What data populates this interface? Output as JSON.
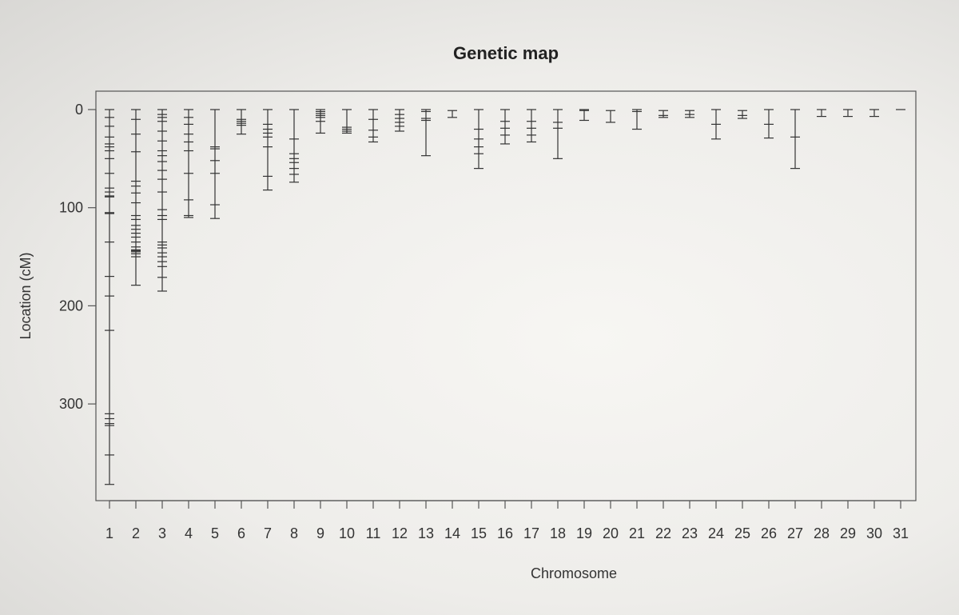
{
  "chart_data": {
    "type": "genetic-map",
    "title": "Genetic map",
    "xlabel": "Chromosome",
    "ylabel": "Location (cM)",
    "ylim": [
      0,
      395
    ],
    "y_reversed": true,
    "y_ticks": [
      0,
      100,
      200,
      300
    ],
    "categories": [
      "1",
      "2",
      "3",
      "4",
      "5",
      "6",
      "7",
      "8",
      "9",
      "10",
      "11",
      "12",
      "13",
      "14",
      "15",
      "16",
      "17",
      "18",
      "19",
      "20",
      "21",
      "22",
      "23",
      "24",
      "25",
      "26",
      "27",
      "28",
      "29",
      "30",
      "31"
    ],
    "chromosomes": [
      {
        "name": "1",
        "markers": [
          0,
          8,
          17,
          28,
          35,
          38,
          42,
          50,
          65,
          80,
          84,
          88,
          89,
          105,
          106,
          135,
          170,
          190,
          225,
          310,
          315,
          320,
          322,
          352,
          382
        ]
      },
      {
        "name": "2",
        "markers": [
          0,
          10,
          25,
          43,
          73,
          78,
          85,
          95,
          108,
          112,
          118,
          122,
          126,
          130,
          135,
          140,
          143,
          144,
          145,
          147,
          150,
          179
        ]
      },
      {
        "name": "3",
        "markers": [
          0,
          5,
          8,
          12,
          22,
          32,
          42,
          47,
          53,
          62,
          71,
          84,
          102,
          108,
          112,
          135,
          138,
          141,
          146,
          150,
          155,
          160,
          171,
          185
        ]
      },
      {
        "name": "4",
        "markers": [
          0,
          8,
          15,
          25,
          33,
          42,
          65,
          92,
          108,
          110
        ]
      },
      {
        "name": "5",
        "markers": [
          0,
          38,
          40,
          52,
          65,
          97,
          111
        ]
      },
      {
        "name": "6",
        "markers": [
          0,
          10,
          12,
          14,
          16,
          25
        ]
      },
      {
        "name": "7",
        "markers": [
          0,
          15,
          20,
          24,
          28,
          38,
          68,
          82
        ]
      },
      {
        "name": "8",
        "markers": [
          0,
          30,
          45,
          50,
          54,
          60,
          66,
          74
        ]
      },
      {
        "name": "9",
        "markers": [
          0,
          2,
          4,
          6,
          8,
          12,
          24
        ]
      },
      {
        "name": "10",
        "markers": [
          0,
          18,
          20,
          22,
          24
        ]
      },
      {
        "name": "11",
        "markers": [
          0,
          10,
          21,
          28,
          33
        ]
      },
      {
        "name": "12",
        "markers": [
          0,
          5,
          9,
          13,
          17,
          22
        ]
      },
      {
        "name": "13",
        "markers": [
          0,
          2,
          9,
          11,
          47
        ]
      },
      {
        "name": "14",
        "markers": [
          1,
          8
        ]
      },
      {
        "name": "15",
        "markers": [
          0,
          20,
          30,
          38,
          45,
          60
        ]
      },
      {
        "name": "16",
        "markers": [
          0,
          12,
          19,
          26,
          35
        ]
      },
      {
        "name": "17",
        "markers": [
          0,
          12,
          19,
          26,
          33
        ]
      },
      {
        "name": "18",
        "markers": [
          0,
          13,
          19,
          50
        ]
      },
      {
        "name": "19",
        "markers": [
          0,
          1,
          11
        ]
      },
      {
        "name": "20",
        "markers": [
          1,
          13
        ]
      },
      {
        "name": "21",
        "markers": [
          0,
          2,
          20
        ]
      },
      {
        "name": "22",
        "markers": [
          1,
          6,
          8
        ]
      },
      {
        "name": "23",
        "markers": [
          1,
          5,
          8
        ]
      },
      {
        "name": "24",
        "markers": [
          0,
          15,
          30
        ]
      },
      {
        "name": "25",
        "markers": [
          1,
          6,
          9
        ]
      },
      {
        "name": "26",
        "markers": [
          0,
          15,
          29
        ]
      },
      {
        "name": "27",
        "markers": [
          0,
          28,
          60
        ]
      },
      {
        "name": "28",
        "markers": [
          0,
          7
        ]
      },
      {
        "name": "29",
        "markers": [
          0,
          7
        ]
      },
      {
        "name": "30",
        "markers": [
          0,
          7
        ]
      },
      {
        "name": "31",
        "markers": [
          0
        ]
      }
    ]
  }
}
